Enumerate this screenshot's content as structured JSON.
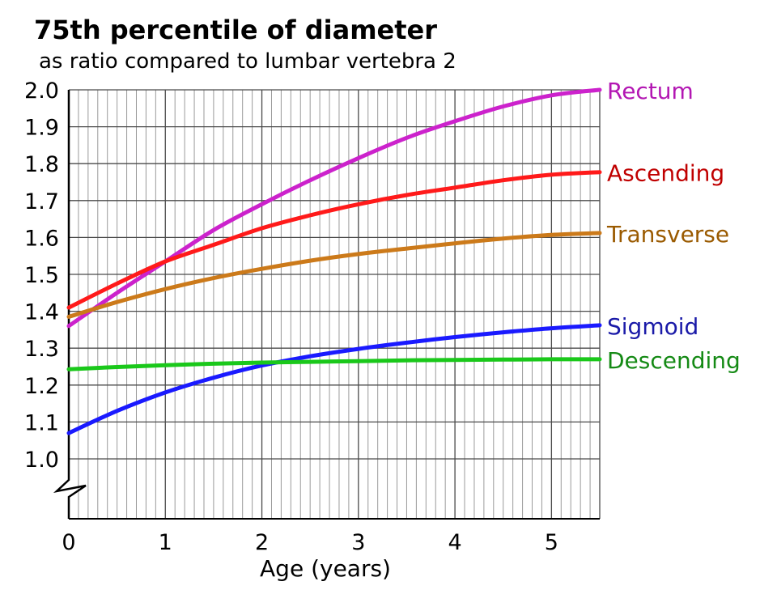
{
  "chart_data": {
    "type": "line",
    "title": "75th percentile of diameter",
    "subtitle": "as ratio compared to lumbar vertebra 2",
    "xlabel": "Age (years)",
    "ylabel": "",
    "xlim": [
      0,
      5.5
    ],
    "ylim": [
      1.0,
      2.0
    ],
    "y_axis_break": true,
    "grid": true,
    "x_ticks": [
      "0",
      "1",
      "2",
      "3",
      "4",
      "5"
    ],
    "y_ticks": [
      "1.0",
      "1.1",
      "1.2",
      "1.3",
      "1.4",
      "1.5",
      "1.6",
      "1.7",
      "1.8",
      "1.9",
      "2.0"
    ],
    "x": [
      0,
      0.5,
      1,
      1.5,
      2,
      2.5,
      3,
      3.5,
      4,
      4.5,
      5,
      5.5
    ],
    "series": [
      {
        "name": "Rectum",
        "color": "#cc22cc",
        "label_color": "#b317b3",
        "values": [
          1.36,
          1.45,
          1.535,
          1.62,
          1.69,
          1.755,
          1.815,
          1.87,
          1.915,
          1.955,
          1.985,
          2.0
        ]
      },
      {
        "name": "Ascending",
        "color": "#ff1a1a",
        "label_color": "#c00000",
        "values": [
          1.41,
          1.475,
          1.535,
          1.58,
          1.625,
          1.66,
          1.69,
          1.715,
          1.735,
          1.755,
          1.77,
          1.777
        ]
      },
      {
        "name": "Transverse",
        "color": "#cc7a1a",
        "label_color": "#9a5a00",
        "values": [
          1.385,
          1.425,
          1.46,
          1.49,
          1.515,
          1.537,
          1.555,
          1.57,
          1.584,
          1.597,
          1.607,
          1.612
        ]
      },
      {
        "name": "Sigmoid",
        "color": "#1a1aff",
        "label_color": "#1a1aa8",
        "values": [
          1.07,
          1.13,
          1.18,
          1.22,
          1.253,
          1.278,
          1.298,
          1.315,
          1.33,
          1.343,
          1.354,
          1.362
        ]
      },
      {
        "name": "Descending",
        "color": "#1ac81a",
        "label_color": "#158a15",
        "values": [
          1.243,
          1.249,
          1.254,
          1.258,
          1.261,
          1.263,
          1.265,
          1.267,
          1.268,
          1.269,
          1.27,
          1.27
        ]
      }
    ]
  }
}
